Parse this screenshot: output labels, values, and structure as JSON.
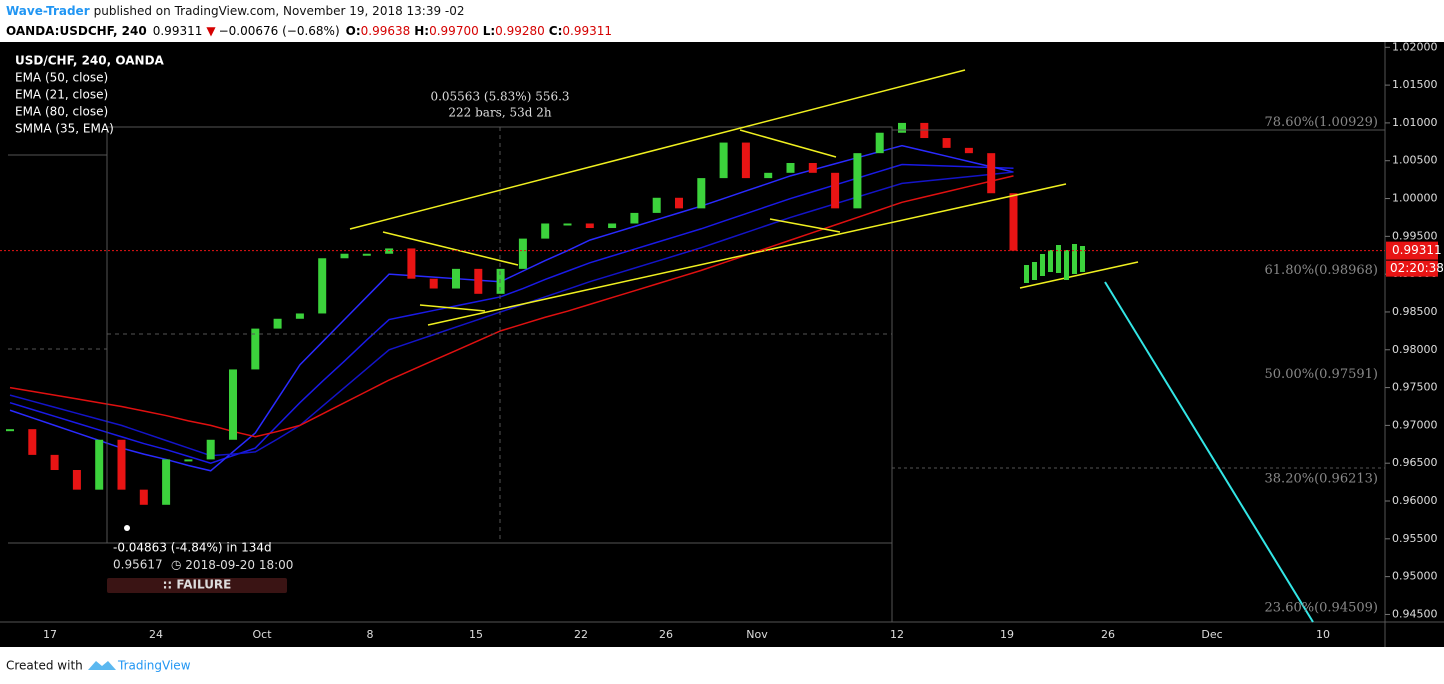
{
  "header": {
    "author": "Wave-Trader",
    "published": "published on TradingView.com, November 19, 2018 13:39 -02",
    "symbol": "OANDA:USDCHF, 240",
    "last": "0.99311",
    "change": "−0.00676 (−0.68%)",
    "open_label": "O:",
    "open": "0.99638",
    "high_label": "H:",
    "high": "0.99700",
    "low_label": "L:",
    "low": "0.99280",
    "close_label": "C:",
    "close": "0.99311"
  },
  "chart_data": {
    "type": "candlestick",
    "up_color": "#3cd23c",
    "down_color": "#e81414",
    "series": [
      {
        "name": "USD/CHF, 240, OANDA",
        "color": "#3cd23c",
        "values": [
          0.9695,
          0.9661,
          0.9641,
          0.9615,
          0.9681,
          0.9615,
          0.9595,
          0.9655,
          0.9655,
          0.9681,
          0.9774,
          0.9828,
          0.9841,
          0.9848,
          0.9921,
          0.9927,
          0.9927,
          0.9934,
          0.9894,
          0.9881,
          0.9907,
          0.9874,
          0.9907,
          0.9947,
          0.9967,
          0.9967,
          0.9961,
          0.9967,
          0.9981,
          1.0001,
          0.9987,
          1.0027,
          1.0074,
          1.0027,
          1.0034,
          1.0047,
          1.0034,
          0.9987,
          1.006,
          1.0087,
          1.01,
          1.008,
          1.0067,
          1.006,
          1.0007,
          0.99311
        ]
      },
      {
        "name": "EMA (50, close)",
        "color": "#1a1ae6",
        "values": [
          0.973,
          0.9721,
          0.9712,
          0.9703,
          0.9694,
          0.9685,
          0.9676,
          0.9668,
          0.9659,
          0.965,
          0.966,
          0.967,
          0.97,
          0.973,
          0.9758,
          0.9785,
          0.9813,
          0.984,
          0.9846,
          0.9852,
          0.9858,
          0.9864,
          0.987,
          0.9881,
          0.9893,
          0.9904,
          0.9915,
          0.9924,
          0.9933,
          0.9942,
          0.9951,
          0.996,
          0.997,
          0.998,
          0.999,
          1.0,
          1.0009,
          1.0018,
          1.0027,
          1.0036,
          1.0045,
          1.0044,
          1.0043,
          1.0042,
          1.0041,
          1.004
        ]
      },
      {
        "name": "EMA (21, close)",
        "color": "#2a2aff",
        "values": [
          0.972,
          0.971,
          0.97,
          0.969,
          0.968,
          0.967,
          0.9662,
          0.9655,
          0.9647,
          0.964,
          0.9665,
          0.969,
          0.9735,
          0.978,
          0.981,
          0.984,
          0.987,
          0.99,
          0.9898,
          0.9896,
          0.9894,
          0.9892,
          0.989,
          0.9904,
          0.9918,
          0.9931,
          0.9945,
          0.9954,
          0.9963,
          0.9972,
          0.9981,
          0.999,
          1.0,
          1.001,
          1.002,
          1.003,
          1.0038,
          1.0046,
          1.0054,
          1.0062,
          1.007,
          1.0063,
          1.0056,
          1.0049,
          1.0042,
          1.0035
        ]
      },
      {
        "name": "EMA (80, close)",
        "color": "#1414c8",
        "values": [
          0.974,
          0.9732,
          0.9724,
          0.9716,
          0.9708,
          0.97,
          0.969,
          0.968,
          0.967,
          0.966,
          0.9662,
          0.9665,
          0.9682,
          0.97,
          0.9725,
          0.975,
          0.9775,
          0.98,
          0.981,
          0.982,
          0.983,
          0.984,
          0.985,
          0.986,
          0.987,
          0.988,
          0.989,
          0.9899,
          0.9908,
          0.9917,
          0.9926,
          0.9935,
          0.9945,
          0.9955,
          0.9965,
          0.9975,
          0.9984,
          0.9993,
          1.0002,
          1.0011,
          1.002,
          1.0023,
          1.0026,
          1.0029,
          1.0032,
          1.0035
        ]
      },
      {
        "name": "SMMA (35, EMA)",
        "color": "#e01010",
        "values": [
          0.975,
          0.9745,
          0.974,
          0.9735,
          0.973,
          0.9725,
          0.9719,
          0.9713,
          0.9706,
          0.97,
          0.9692,
          0.9685,
          0.9692,
          0.97,
          0.9715,
          0.973,
          0.9745,
          0.976,
          0.9773,
          0.9786,
          0.9799,
          0.9812,
          0.9825,
          0.9834,
          0.9843,
          0.9851,
          0.986,
          0.9869,
          0.9878,
          0.9887,
          0.9896,
          0.9905,
          0.9915,
          0.9925,
          0.9935,
          0.9945,
          0.9955,
          0.9965,
          0.9975,
          0.9985,
          0.9995,
          1.0002,
          1.0009,
          1.0016,
          1.0023,
          1.003
        ]
      }
    ],
    "x_labels": [
      "17",
      "24",
      "Oct",
      "8",
      "15",
      "22",
      "26",
      "Nov",
      "12",
      "19",
      "26",
      "Dec",
      "10"
    ],
    "ylim": [
      0.944,
      1.0207
    ],
    "yticks": [
      {
        "value": 0.945,
        "label": "0.94500"
      },
      {
        "value": 0.95,
        "label": "0.95000"
      },
      {
        "value": 0.955,
        "label": "0.95500"
      },
      {
        "value": 0.96,
        "label": "0.96000"
      },
      {
        "value": 0.965,
        "label": "0.96500"
      },
      {
        "value": 0.97,
        "label": "0.97000"
      },
      {
        "value": 0.975,
        "label": "0.97500"
      },
      {
        "value": 0.98,
        "label": "0.98000"
      },
      {
        "value": 0.985,
        "label": "0.98500"
      },
      {
        "value": 0.99,
        "label": "0.99000"
      },
      {
        "value": 0.995,
        "label": "0.99500"
      },
      {
        "value": 1.0,
        "label": "1.00000"
      },
      {
        "value": 1.005,
        "label": "1.00500"
      },
      {
        "value": 1.01,
        "label": "1.01000"
      },
      {
        "value": 1.015,
        "label": "1.01500"
      },
      {
        "value": 1.02,
        "label": "1.02000"
      }
    ],
    "price_line": {
      "value": 0.99311,
      "label": "0.99311"
    },
    "countdown": "02:20:38",
    "fib_levels": [
      {
        "value": 1.00929,
        "label": "78.60%(1.00929)"
      },
      {
        "value": 0.98968,
        "label": "61.80%(0.98968)"
      },
      {
        "value": 0.97591,
        "label": "50.00%(0.97591)"
      },
      {
        "value": 0.96213,
        "label": "38.20%(0.96213)"
      },
      {
        "value": 0.94509,
        "label": "23.60%(0.94509)"
      }
    ],
    "annotations": {
      "measure_1": "0.05563 (5.83%) 556.3",
      "measure_2": "222 bars, 53d 2h",
      "drop": "-0.04863 (-4.84%) in 134d",
      "drop_price": "0.95617",
      "drop_time": "2018-09-20 18:00",
      "status": ":: FAILURE"
    }
  },
  "footer": {
    "created": "Created with",
    "brand": "TradingView"
  }
}
